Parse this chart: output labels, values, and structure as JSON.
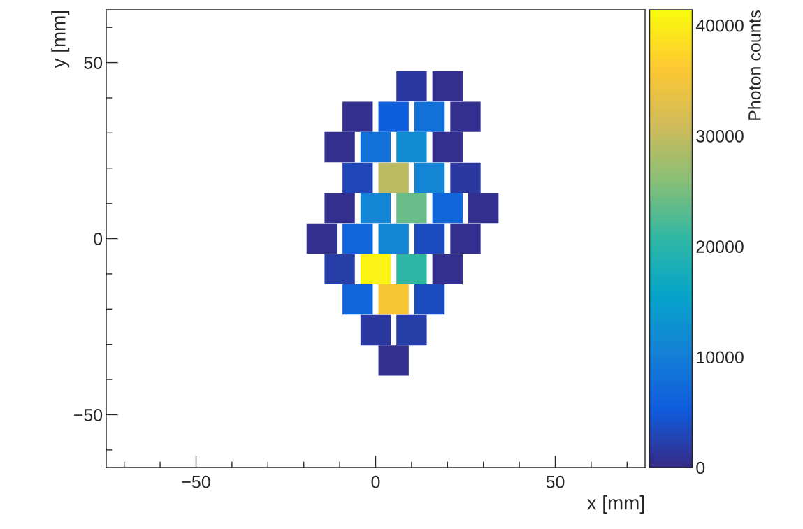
{
  "chart_data": {
    "type": "scatter",
    "marker": "square",
    "x": [
      10,
      20,
      -5,
      5,
      15,
      25,
      -10,
      0,
      10,
      20,
      -5,
      5,
      15,
      25,
      -10,
      0,
      10,
      20,
      30,
      -15,
      -5,
      5,
      15,
      25,
      -10,
      0,
      10,
      20,
      -5,
      5,
      15,
      0,
      10,
      5
    ],
    "values": [
      43.3,
      43.3,
      34.6,
      34.6,
      34.6,
      34.6,
      26,
      26,
      26,
      26,
      17.3,
      17.3,
      17.3,
      17.3,
      8.7,
      8.7,
      8.7,
      8.7,
      8.7,
      0,
      0,
      0,
      0,
      0,
      -8.7,
      -8.7,
      -8.7,
      -8.7,
      -17.3,
      -17.3,
      -17.3,
      -26,
      -26,
      -34.6
    ],
    "cvalues": [
      1500,
      500,
      500,
      5500,
      8000,
      500,
      500,
      8000,
      12000,
      500,
      3000,
      29500,
      11000,
      1500,
      500,
      11000,
      24000,
      6500,
      500,
      500,
      6500,
      11000,
      3500,
      500,
      2000,
      40500,
      20500,
      500,
      6500,
      35500,
      3500,
      1500,
      2000,
      500
    ],
    "xlim": [
      -75,
      75
    ],
    "ylim": [
      -65,
      65
    ],
    "xticks": [
      {
        "value": -70,
        "label": null
      },
      {
        "value": -60,
        "label": null
      },
      -50,
      {
        "value": -40,
        "label": null
      },
      {
        "value": -30,
        "label": null
      },
      {
        "value": -20,
        "label": null
      },
      {
        "value": -10,
        "label": null
      },
      0,
      {
        "value": 10,
        "label": null
      },
      {
        "value": 20,
        "label": null
      },
      {
        "value": 30,
        "label": null
      },
      {
        "value": 40,
        "label": null
      },
      50,
      {
        "value": 60,
        "label": null
      },
      {
        "value": 70,
        "label": null
      }
    ],
    "yticks": [
      {
        "value": -60,
        "label": null
      },
      -50,
      {
        "value": -40,
        "label": null
      },
      {
        "value": -30,
        "label": null
      },
      {
        "value": -20,
        "label": null
      },
      {
        "value": -10,
        "label": null
      },
      0,
      {
        "value": 10,
        "label": null
      },
      {
        "value": 20,
        "label": null
      },
      {
        "value": 30,
        "label": null
      },
      {
        "value": 40,
        "label": null
      },
      50,
      {
        "value": 60,
        "label": null
      }
    ],
    "clim": [
      0,
      41400
    ],
    "cticks": [
      0,
      10000,
      20000,
      30000,
      40000
    ],
    "xlabel": "x [mm]",
    "ylabel": "y [mm]",
    "clabel": "Photon counts"
  }
}
